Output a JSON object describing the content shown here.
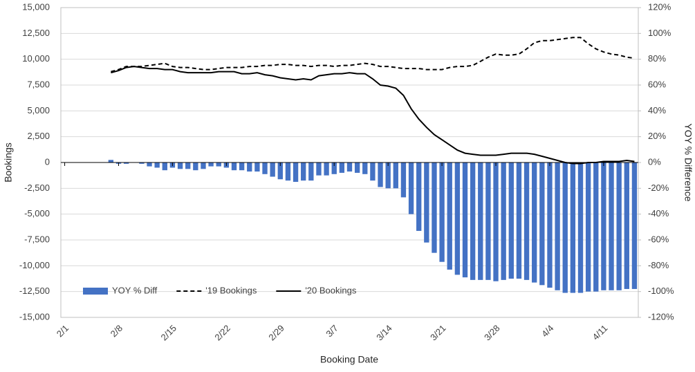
{
  "chart_data": {
    "type": "combo",
    "x_label": "Booking Date",
    "y_label": "Bookings",
    "y2_label": "YOY % Difference",
    "categories": [
      "2/1",
      null,
      null,
      null,
      null,
      null,
      null,
      "2/8",
      null,
      null,
      null,
      null,
      null,
      null,
      "2/15",
      null,
      null,
      null,
      null,
      null,
      null,
      "2/22",
      null,
      null,
      null,
      null,
      null,
      null,
      "2/29",
      null,
      null,
      null,
      null,
      null,
      null,
      "3/7",
      null,
      null,
      null,
      null,
      null,
      null,
      "3/14",
      null,
      null,
      null,
      null,
      null,
      null,
      "3/21",
      null,
      null,
      null,
      null,
      null,
      null,
      "3/28",
      null,
      null,
      null,
      null,
      null,
      null,
      "4/4",
      null,
      null,
      null,
      null,
      null,
      null,
      "4/11",
      null,
      null,
      null,
      null
    ],
    "series": [
      {
        "name": "YOY % Diff",
        "type": "bar",
        "axis": "y2",
        "color": "#4472c4",
        "values": [
          null,
          null,
          null,
          null,
          null,
          null,
          2,
          -1,
          -1,
          0,
          -1,
          -3,
          -4,
          -6,
          -4,
          -5,
          -5,
          -6,
          -5,
          -3,
          -3,
          -4,
          -6,
          -6,
          -7,
          -7,
          -9,
          -11,
          -13,
          -14,
          -15,
          -14,
          -14,
          -10,
          -10,
          -9,
          -8,
          -7,
          -8,
          -9,
          -14,
          -19,
          -20,
          -20,
          -27,
          -40,
          -53,
          -62,
          -70,
          -77,
          -83,
          -87,
          -89,
          -91,
          -91,
          -91,
          -92,
          -91,
          -90,
          -90,
          -91,
          -93,
          -95,
          -97,
          -99,
          -101,
          -101,
          -101,
          -100,
          -100,
          -99,
          -99,
          -99,
          -98,
          -98
        ]
      },
      {
        "name": "'19 Bookings",
        "type": "line",
        "dashed": true,
        "color": "#000000",
        "values": [
          null,
          null,
          null,
          null,
          null,
          null,
          8800,
          9000,
          9300,
          9300,
          9300,
          9400,
          9500,
          9600,
          9300,
          9200,
          9200,
          9100,
          9000,
          9000,
          9100,
          9200,
          9200,
          9200,
          9300,
          9300,
          9400,
          9400,
          9500,
          9500,
          9400,
          9400,
          9300,
          9400,
          9400,
          9300,
          9400,
          9400,
          9500,
          9600,
          9500,
          9300,
          9300,
          9200,
          9100,
          9100,
          9100,
          9000,
          9000,
          9000,
          9200,
          9300,
          9300,
          9400,
          9800,
          10200,
          10500,
          10400,
          10400,
          10500,
          11000,
          11600,
          11800,
          11800,
          11900,
          12000,
          12100,
          12100,
          11500,
          11000,
          10700,
          10500,
          10400,
          10200,
          10100
        ]
      },
      {
        "name": "'20 Bookings",
        "type": "line",
        "dashed": false,
        "color": "#000000",
        "values": [
          null,
          null,
          null,
          null,
          null,
          null,
          8700,
          8900,
          9200,
          9300,
          9200,
          9100,
          9100,
          9000,
          9000,
          8800,
          8700,
          8700,
          8700,
          8700,
          8800,
          8800,
          8800,
          8600,
          8600,
          8700,
          8500,
          8400,
          8200,
          8100,
          8000,
          8100,
          8000,
          8400,
          8500,
          8600,
          8600,
          8700,
          8600,
          8600,
          8100,
          7500,
          7400,
          7200,
          6500,
          5200,
          4200,
          3400,
          2700,
          2200,
          1700,
          1200,
          900,
          800,
          700,
          700,
          700,
          800,
          900,
          900,
          900,
          800,
          600,
          400,
          200,
          0,
          -100,
          -100,
          0,
          0,
          100,
          100,
          100,
          200,
          100
        ]
      }
    ],
    "ylim": [
      -15000,
      15000
    ],
    "yticks": [
      {
        "value": -15000,
        "label": "-15,000"
      },
      {
        "value": -12500,
        "label": "-12,500"
      },
      {
        "value": -10000,
        "label": "-10,000"
      },
      {
        "value": -7500,
        "label": "-7,500"
      },
      {
        "value": -5000,
        "label": "-5,000"
      },
      {
        "value": -2500,
        "label": "-2,500"
      },
      0,
      {
        "value": 2500,
        "label": "2,500"
      },
      {
        "value": 5000,
        "label": "5,000"
      },
      {
        "value": 7500,
        "label": "7,500"
      },
      {
        "value": 10000,
        "label": "10,000"
      },
      {
        "value": 12500,
        "label": "12,500"
      },
      {
        "value": 15000,
        "label": "15,000"
      }
    ],
    "y2lim": [
      -120,
      120
    ],
    "y2ticks": [
      {
        "value": -120,
        "label": "-120%"
      },
      {
        "value": -100,
        "label": "-100%"
      },
      {
        "value": -80,
        "label": "-80%"
      },
      {
        "value": -60,
        "label": "-60%"
      },
      {
        "value": -40,
        "label": "-40%"
      },
      {
        "value": -20,
        "label": "-20%"
      },
      {
        "value": 0,
        "label": "0%"
      },
      {
        "value": 20,
        "label": "20%"
      },
      {
        "value": 40,
        "label": "40%"
      },
      {
        "value": 60,
        "label": "60%"
      },
      {
        "value": 80,
        "label": "80%"
      },
      {
        "value": 100,
        "label": "100%"
      },
      {
        "value": 120,
        "label": "120%"
      }
    ],
    "grid": true,
    "legend": "lower left"
  }
}
